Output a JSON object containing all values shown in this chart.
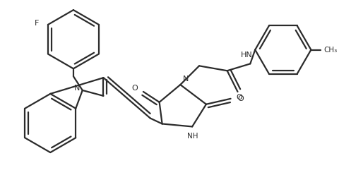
{
  "bg": "#ffffff",
  "lc": "#2b2b2b",
  "lw": 1.6,
  "figsize": [
    4.8,
    2.48
  ],
  "dpi": 100,
  "xlim": [
    0,
    480
  ],
  "ylim": [
    0,
    248
  ]
}
